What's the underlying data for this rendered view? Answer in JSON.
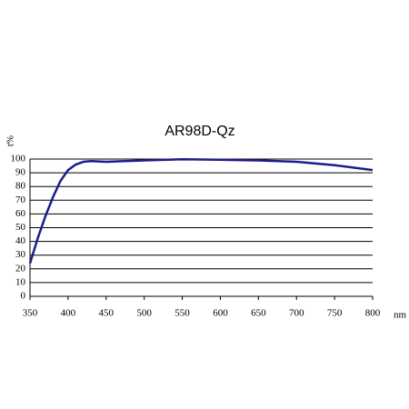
{
  "chart_data": {
    "type": "line",
    "title": "AR98D-Qz",
    "x_label": "nm",
    "y_label": "t%",
    "x": [
      350,
      360,
      370,
      380,
      390,
      400,
      410,
      420,
      430,
      450,
      500,
      550,
      600,
      650,
      700,
      750,
      800
    ],
    "series": [
      {
        "name": "AR98D-Qz",
        "color": "#1c1c8a",
        "values": [
          24,
          42,
          58,
          72,
          84,
          92,
          96,
          98,
          98.5,
          98,
          99,
          99.8,
          99.5,
          99,
          98,
          95.5,
          92
        ]
      }
    ],
    "xlim": [
      350,
      800
    ],
    "xticks": [
      350,
      400,
      450,
      500,
      550,
      600,
      650,
      700,
      750,
      800
    ],
    "ylim": [
      0,
      100
    ],
    "yticks": [
      0,
      10,
      20,
      30,
      40,
      50,
      60,
      70,
      80,
      90,
      100
    ],
    "grid": true
  }
}
